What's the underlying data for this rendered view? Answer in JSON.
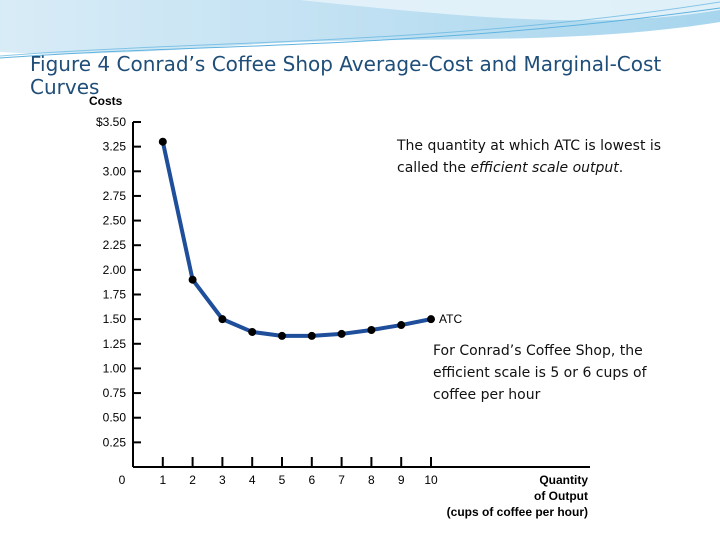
{
  "slide": {
    "title": "Figure 4 Conrad’s Coffee Shop Average-Cost and Marginal-Cost Curves"
  },
  "colors": {
    "curve": "#1f4e9a",
    "point": "#000000",
    "axis": "#000000",
    "title": "#1f4e79"
  },
  "annotations": {
    "efficient_prefix": "The quantity at which ATC is lowest is called the ",
    "efficient_em": "efficient scale output",
    "efficient_suffix": ".",
    "conrad": "For Conrad’s Coffee Shop, the efficient scale is 5 or 6 cups of coffee per hour"
  },
  "chart_data": {
    "type": "line",
    "title": "",
    "ylabel": "Costs",
    "xlabel": [
      "Quantity",
      "of Output",
      "(cups of coffee per hour)"
    ],
    "xlim": [
      0,
      10
    ],
    "ylim": [
      0,
      3.5
    ],
    "x_ticks": [
      "0",
      "1",
      "2",
      "3",
      "4",
      "5",
      "6",
      "7",
      "8",
      "9",
      "10"
    ],
    "y_ticks": [
      "0.25",
      "0.50",
      "0.75",
      "1.00",
      "1.25",
      "1.50",
      "1.75",
      "2.00",
      "2.25",
      "2.50",
      "2.75",
      "3.00",
      "3.25",
      "$3.50"
    ],
    "grid": false,
    "series": [
      {
        "name": "ATC",
        "x": [
          1,
          2,
          3,
          4,
          5,
          6,
          7,
          8,
          9,
          10
        ],
        "y": [
          3.3,
          1.9,
          1.5,
          1.37,
          1.33,
          1.33,
          1.35,
          1.39,
          1.44,
          1.5
        ]
      }
    ]
  }
}
